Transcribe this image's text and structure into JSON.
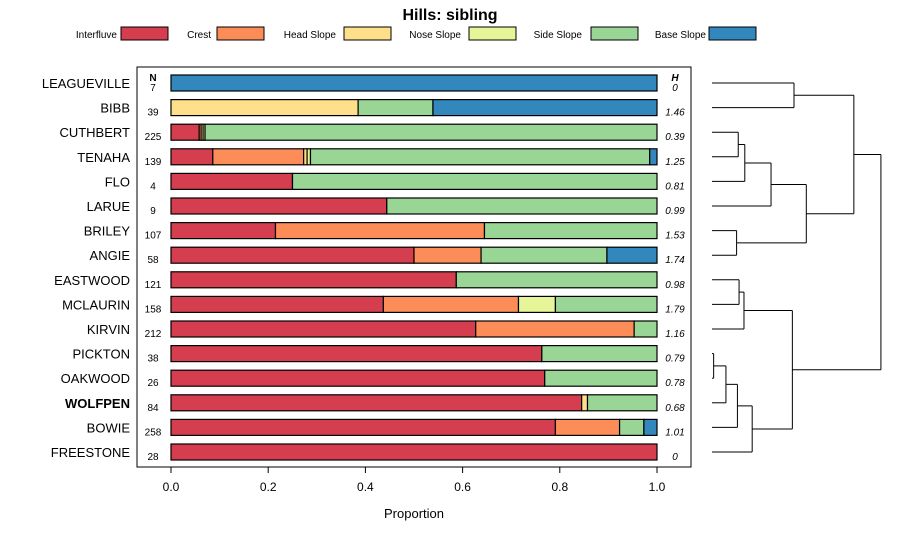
{
  "chart_data": {
    "type": "bar",
    "orientation": "horizontal-stacked",
    "title": "Hills: sibling",
    "xlabel": "Proportion",
    "ylabel": "",
    "xlim": [
      0,
      1
    ],
    "x_ticks": [
      "0.0",
      "0.2",
      "0.4",
      "0.6",
      "0.8",
      "1.0"
    ],
    "n_header": "N",
    "h_header": "H",
    "highlight_category": "WOLFPEN",
    "legend_position": "top",
    "series": [
      {
        "name": "Interfluve",
        "color": "#d53e4f"
      },
      {
        "name": "Crest",
        "color": "#fc8d59"
      },
      {
        "name": "Head Slope",
        "color": "#fee08b"
      },
      {
        "name": "Nose Slope",
        "color": "#e6f598"
      },
      {
        "name": "Side Slope",
        "color": "#99d594"
      },
      {
        "name": "Base Slope",
        "color": "#3288bd"
      }
    ],
    "rows": [
      {
        "name": "LEAGUEVILLE",
        "n": "7",
        "h": "0",
        "values": [
          0,
          0,
          0,
          0,
          0,
          1.0
        ]
      },
      {
        "name": "BIBB",
        "n": "39",
        "h": "1.46",
        "values": [
          0,
          0,
          0.385,
          0,
          0.154,
          0.461
        ]
      },
      {
        "name": "CUTHBERT",
        "n": "225",
        "h": "0.39",
        "values": [
          0.058,
          0.004,
          0.004,
          0.004,
          0.93,
          0
        ]
      },
      {
        "name": "TENAHA",
        "n": "139",
        "h": "1.25",
        "values": [
          0.086,
          0.187,
          0.007,
          0.007,
          0.698,
          0.015
        ]
      },
      {
        "name": "FLO",
        "n": "4",
        "h": "0.81",
        "values": [
          0.25,
          0,
          0,
          0,
          0.75,
          0
        ]
      },
      {
        "name": "LARUE",
        "n": "9",
        "h": "0.99",
        "values": [
          0.444,
          0,
          0,
          0,
          0.556,
          0
        ]
      },
      {
        "name": "BRILEY",
        "n": "107",
        "h": "1.53",
        "values": [
          0.215,
          0.43,
          0,
          0,
          0.355,
          0
        ]
      },
      {
        "name": "ANGIE",
        "n": "58",
        "h": "1.74",
        "values": [
          0.5,
          0.138,
          0,
          0,
          0.259,
          0.103
        ]
      },
      {
        "name": "EASTWOOD",
        "n": "121",
        "h": "0.98",
        "values": [
          0.587,
          0,
          0,
          0,
          0.413,
          0
        ]
      },
      {
        "name": "MCLAURIN",
        "n": "158",
        "h": "1.79",
        "values": [
          0.437,
          0.278,
          0,
          0.076,
          0.209,
          0
        ]
      },
      {
        "name": "KIRVIN",
        "n": "212",
        "h": "1.16",
        "values": [
          0.627,
          0.326,
          0,
          0,
          0.047,
          0
        ]
      },
      {
        "name": "PICKTON",
        "n": "38",
        "h": "0.79",
        "values": [
          0.763,
          0,
          0,
          0,
          0.237,
          0
        ]
      },
      {
        "name": "OAKWOOD",
        "n": "26",
        "h": "0.78",
        "values": [
          0.769,
          0,
          0,
          0,
          0.231,
          0
        ]
      },
      {
        "name": "WOLFPEN",
        "n": "84",
        "h": "0.68",
        "values": [
          0.845,
          0,
          0.012,
          0,
          0.143,
          0
        ]
      },
      {
        "name": "BOWIE",
        "n": "258",
        "h": "1.01",
        "values": [
          0.791,
          0.132,
          0,
          0,
          0.05,
          0.027
        ]
      },
      {
        "name": "FREESTONE",
        "n": "28",
        "h": "0",
        "values": [
          1.0,
          0,
          0,
          0,
          0,
          0
        ]
      }
    ],
    "dendrogram": {
      "type": "hierarchical-clustering",
      "leaf_order": [
        "LEAGUEVILLE",
        "BIBB",
        "CUTHBERT",
        "TENAHA",
        "FLO",
        "LARUE",
        "BRILEY",
        "ANGIE",
        "EASTWOOD",
        "MCLAURIN",
        "KIRVIN",
        "PICKTON",
        "OAKWOOD",
        "WOLFPEN",
        "BOWIE",
        "FREESTONE"
      ],
      "merges": [
        {
          "left": "PICKTON",
          "right": "OAKWOOD",
          "height": 0.02
        },
        {
          "left": "CUTHBERT",
          "right": "TENAHA",
          "height": 0.32
        },
        {
          "left": "EASTWOOD",
          "right": "MCLAURIN",
          "height": 0.33
        },
        {
          "left": "PICKTON+OAKWOOD",
          "right": "WOLFPEN",
          "height": 0.17
        },
        {
          "left": "CUTHBERT+TENAHA",
          "right": "FLO",
          "height": 0.4
        },
        {
          "left": "PICKTON+OAKWOOD+WOLFPEN",
          "right": "BOWIE",
          "height": 0.31
        },
        {
          "left": "EASTWOOD+MCLAURIN",
          "right": "KIRVIN",
          "height": 0.39
        },
        {
          "left": "PICKTON+OAKWOOD+WOLFPEN+BOWIE",
          "right": "FREESTONE",
          "height": 0.49
        },
        {
          "left": "LEAGUEVILLE",
          "right": "BIBB",
          "height": 1.0
        },
        {
          "left": "CUTHBERT+TENAHA+FLO",
          "right": "LARUE",
          "height": 0.72
        },
        {
          "left": "EASTWOOD+MCLAURIN+KIRVIN",
          "right": "PICKTON+OAKWOOD+WOLFPEN+BOWIE+FREESTONE",
          "height": 0.98
        },
        {
          "left": "CUTHBERT+TENAHA+FLO+LARUE",
          "right": "BRILEY+ANGIE",
          "height": 1.15
        },
        {
          "left": "LEAGUEVILLE+BIBB",
          "right": "CUTHBERT+TENAHA+FLO+LARUE+BRILEY+ANGIE",
          "height": 1.73
        },
        {
          "left": "ALL-UPPER",
          "right": "EASTWOOD+MCLAURIN+KIRVIN+PICKTON+OAKWOOD+WOLFPEN+BOWIE+FREESTONE",
          "height": 2.06
        }
      ]
    }
  }
}
